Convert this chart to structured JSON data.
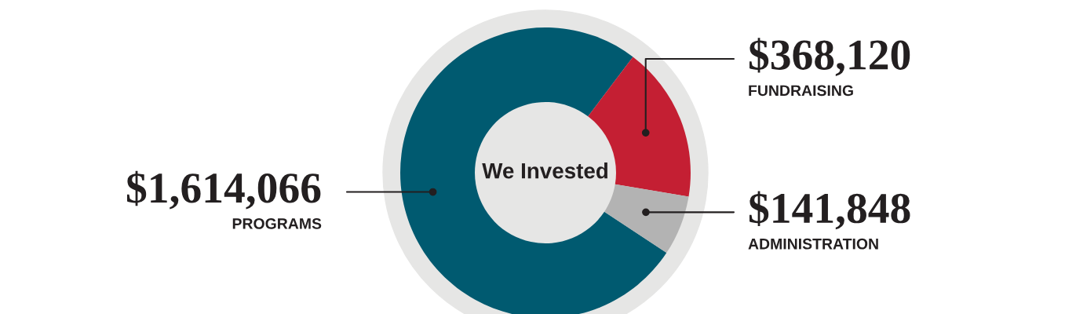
{
  "chart_data": {
    "type": "donut",
    "title": "We Invested",
    "categories": [
      "PROGRAMS",
      "FUNDRAISING",
      "ADMINISTRATION"
    ],
    "values": [
      1614066,
      368120,
      141848
    ],
    "colors": [
      "#005a70",
      "#c41f33",
      "#b3b3b3"
    ],
    "value_labels": [
      "$1,614,066",
      "$368,120",
      "$141,848"
    ]
  }
}
